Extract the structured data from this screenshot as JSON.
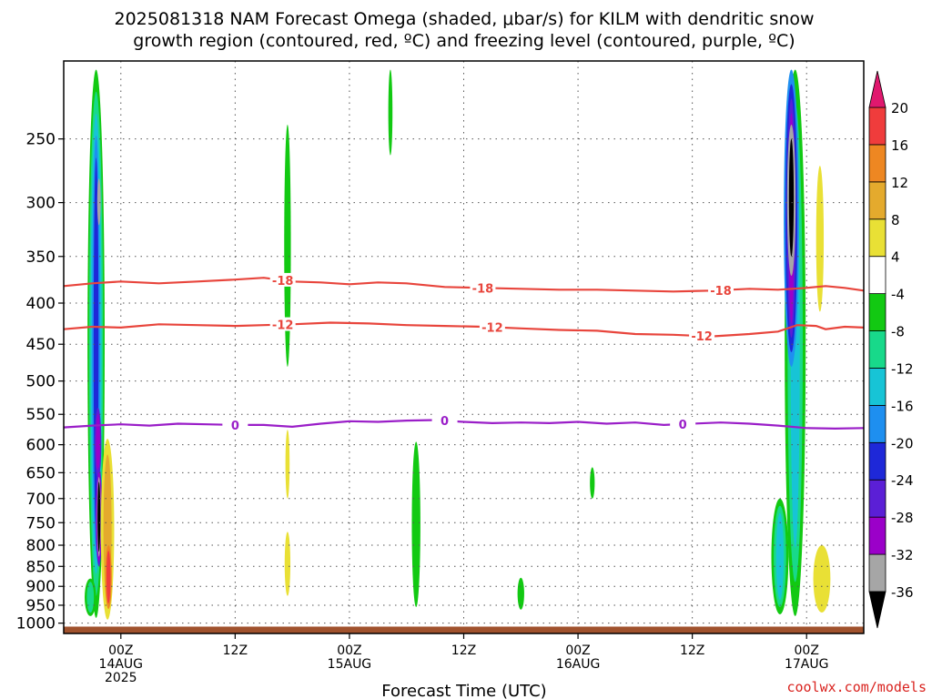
{
  "title_lines": [
    "2025081318 NAM Forecast Omega (shaded, μbar/s) for KILM with dendritic snow",
    "growth region (contoured, red, ºC) and freezing level (contoured, purple, ºC)"
  ],
  "watermark": "coolwx.com/models",
  "colors": {
    "snow_growth_contour": "#e8453c",
    "freezing_contour": "#9a1ec8",
    "terrain": "#a0522d",
    "grid": "#555555"
  },
  "chart_data": {
    "type": "heatmap",
    "title": "2025081318 NAM Forecast Omega (shaded, μbar/s) for KILM with dendritic snow growth region (contoured, red, ºC) and freezing level (contoured, purple, ºC)",
    "xlabel": "Forecast Time (UTC)",
    "ylabel": "",
    "y_scale": "log (pressure, hPa)",
    "ylim": [
      1030,
      200
    ],
    "xlim_hours_since_start": [
      0,
      84
    ],
    "y_ticks": [
      250,
      300,
      350,
      400,
      450,
      500,
      550,
      600,
      650,
      700,
      750,
      800,
      850,
      900,
      950,
      1000
    ],
    "x_ticks": [
      {
        "hour": 6,
        "line1": "00Z",
        "line2": "14AUG",
        "line3": "2025"
      },
      {
        "hour": 18,
        "line1": "12Z",
        "line2": "",
        "line3": ""
      },
      {
        "hour": 30,
        "line1": "00Z",
        "line2": "15AUG",
        "line3": ""
      },
      {
        "hour": 42,
        "line1": "12Z",
        "line2": "",
        "line3": ""
      },
      {
        "hour": 54,
        "line1": "00Z",
        "line2": "16AUG",
        "line3": ""
      },
      {
        "hour": 66,
        "line1": "12Z",
        "line2": "",
        "line3": ""
      },
      {
        "hour": 78,
        "line1": "00Z",
        "line2": "17AUG",
        "line3": ""
      }
    ],
    "grid": true,
    "colorbar": {
      "units": "μbar/s",
      "tick_labels": [
        "20",
        "16",
        "12",
        "8",
        "4",
        "-4",
        "-8",
        "-12",
        "-16",
        "-20",
        "-24",
        "-28",
        "-32",
        "-36"
      ],
      "bins": [
        {
          "range": "<-36",
          "color": "#000000"
        },
        {
          "range": "-36 to -32",
          "color": "#a6a6a6"
        },
        {
          "range": "-32 to -28",
          "color": "#9b00c9"
        },
        {
          "range": "-28 to -24",
          "color": "#5b1fd6"
        },
        {
          "range": "-24 to -20",
          "color": "#1e28d8"
        },
        {
          "range": "-20 to -16",
          "color": "#1e8ff0"
        },
        {
          "range": "-16 to -12",
          "color": "#17c4d6"
        },
        {
          "range": "-12 to -8",
          "color": "#18d98a"
        },
        {
          "range": "-8 to -4",
          "color": "#12c912"
        },
        {
          "range": "-4 to 4",
          "color": "#ffffff"
        },
        {
          "range": "4 to 8",
          "color": "#e9e035"
        },
        {
          "range": "8 to 12",
          "color": "#e4aa2d"
        },
        {
          "range": "12 to 16",
          "color": "#ee8722"
        },
        {
          "range": "16 to 20",
          "color": "#f03c3c"
        },
        {
          "range": ">20",
          "color": "#e0186e"
        }
      ]
    },
    "contours": [
      {
        "level": "-18",
        "color": "#e8453c",
        "labels_at_hours": [
          23,
          44,
          69
        ],
        "points": [
          [
            0,
            381
          ],
          [
            3,
            378
          ],
          [
            6,
            376
          ],
          [
            10,
            378
          ],
          [
            14,
            376
          ],
          [
            18,
            374
          ],
          [
            21,
            372
          ],
          [
            24,
            376
          ],
          [
            27,
            377
          ],
          [
            30,
            379
          ],
          [
            33,
            377
          ],
          [
            36,
            378
          ],
          [
            40,
            382
          ],
          [
            44,
            383
          ],
          [
            48,
            384
          ],
          [
            52,
            385
          ],
          [
            56,
            385
          ],
          [
            60,
            386
          ],
          [
            64,
            387
          ],
          [
            68,
            386
          ],
          [
            72,
            384
          ],
          [
            75,
            385
          ],
          [
            78,
            383
          ],
          [
            80,
            381
          ],
          [
            82,
            383
          ],
          [
            84,
            386
          ]
        ]
      },
      {
        "level": "-12",
        "color": "#e8453c",
        "labels_at_hours": [
          23,
          45,
          67
        ],
        "points": [
          [
            0,
            431
          ],
          [
            3,
            428
          ],
          [
            6,
            429
          ],
          [
            10,
            425
          ],
          [
            14,
            426
          ],
          [
            18,
            427
          ],
          [
            21,
            426
          ],
          [
            24,
            425
          ],
          [
            28,
            423
          ],
          [
            32,
            424
          ],
          [
            36,
            426
          ],
          [
            40,
            427
          ],
          [
            44,
            428
          ],
          [
            48,
            430
          ],
          [
            52,
            432
          ],
          [
            56,
            433
          ],
          [
            60,
            437
          ],
          [
            64,
            438
          ],
          [
            68,
            440
          ],
          [
            72,
            437
          ],
          [
            75,
            434
          ],
          [
            77,
            426
          ],
          [
            79,
            427
          ],
          [
            80,
            431
          ],
          [
            82,
            428
          ],
          [
            84,
            429
          ]
        ]
      },
      {
        "level": "0",
        "color": "#9a1ec8",
        "labels_at_hours": [
          18,
          40,
          65
        ],
        "points": [
          [
            0,
            571
          ],
          [
            3,
            568
          ],
          [
            6,
            566
          ],
          [
            9,
            568
          ],
          [
            12,
            565
          ],
          [
            15,
            566
          ],
          [
            18,
            567
          ],
          [
            21,
            567
          ],
          [
            24,
            570
          ],
          [
            27,
            565
          ],
          [
            30,
            561
          ],
          [
            33,
            562
          ],
          [
            36,
            560
          ],
          [
            39,
            559
          ],
          [
            42,
            562
          ],
          [
            45,
            564
          ],
          [
            48,
            563
          ],
          [
            51,
            564
          ],
          [
            54,
            562
          ],
          [
            57,
            565
          ],
          [
            60,
            563
          ],
          [
            63,
            567
          ],
          [
            66,
            565
          ],
          [
            69,
            563
          ],
          [
            72,
            565
          ],
          [
            75,
            568
          ],
          [
            78,
            572
          ],
          [
            81,
            573
          ],
          [
            84,
            572
          ]
        ]
      }
    ],
    "omega_features": [
      {
        "hour": 3.6,
        "p_top": 200,
        "p_bottom": 990,
        "peak": "< -36 (black) near 700-800 hPa and weak magenta/grey aloft",
        "note": "strong upward motion column"
      },
      {
        "hour": 4.8,
        "p_top": 590,
        "p_bottom": 990,
        "peak": "16 to 20 (red) near 900 hPa",
        "note": "sinking motion beside updraft"
      },
      {
        "hour": 23.5,
        "p_top": 240,
        "p_bottom": 470,
        "peak": "-8 to -4 (green)",
        "note": "weak ascent"
      },
      {
        "hour": 23.5,
        "p_top": 570,
        "p_bottom": 700,
        "peak": "4 to 8 (yellow)"
      },
      {
        "hour": 23.5,
        "p_top": 770,
        "p_bottom": 920,
        "peak": "4 to 8 (yellow)"
      },
      {
        "hour": 34.3,
        "p_top": 200,
        "p_bottom": 260,
        "peak": "-8 to -4 (green)"
      },
      {
        "hour": 37.0,
        "p_top": 600,
        "p_bottom": 950,
        "peak": "-8 to -4 (green)"
      },
      {
        "hour": 48.0,
        "p_top": 880,
        "p_bottom": 960,
        "peak": "-8 to -4 (green)"
      },
      {
        "hour": 55.5,
        "p_top": 640,
        "p_bottom": 700,
        "peak": "-8 to -4 (green)"
      },
      {
        "hour": 76.5,
        "p_top": 200,
        "p_bottom": 980,
        "peak": "< -36 (black) near 250-320 hPa",
        "note": "strong upward motion column"
      },
      {
        "hour": 79.5,
        "p_top": 270,
        "p_bottom": 400,
        "peak": "4 to 8 (yellow)"
      },
      {
        "hour": 79.5,
        "p_top": 780,
        "p_bottom": 970,
        "peak": "4 to 8 (yellow)"
      }
    ]
  }
}
